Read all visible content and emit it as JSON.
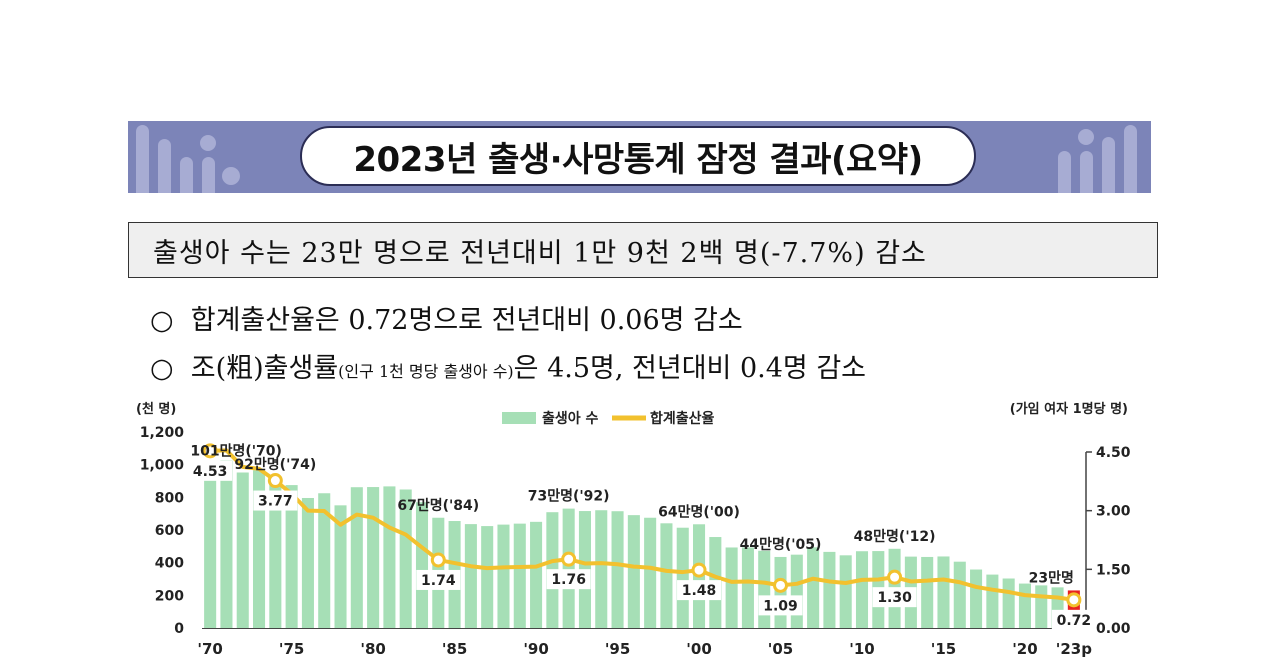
{
  "title": "2023년 출생·사망통계 잠정 결과(요약)",
  "headline": "출생아 수는 23만 명으로 전년대비 1만 9천 2백 명(-7.7%) 감소",
  "bullets": [
    {
      "marker": "○",
      "main": "합계출산율은 0.72명으로 전년대비 0.06명 감소",
      "pre": "",
      "small": "",
      "post": ""
    },
    {
      "marker": "○",
      "main": "",
      "pre": "조(粗)출생률",
      "small": "(인구 1천 명당 출생아 수)",
      "post": "은 4.5명, 전년대비 0.4명 감소"
    }
  ],
  "chart_data": {
    "type": "bar",
    "left_unit": "(천 명)",
    "right_unit": "(가임 여자 1명당 명)",
    "legend": [
      {
        "name": "출생아 수",
        "color": "#a6dfb6"
      },
      {
        "name": "합계출산율",
        "color": "#f2c12e"
      }
    ],
    "ylim_left": [
      0,
      1200
    ],
    "yticks_left": [
      "0",
      "200",
      "400",
      "600",
      "800",
      "1,000",
      "1,200"
    ],
    "ylim_right": [
      0,
      4.5
    ],
    "yticks_right": [
      "0.00",
      "1.50",
      "3.00",
      "4.50"
    ],
    "xticks": [
      "'70",
      "'75",
      "'80",
      "'85",
      "'90",
      "'95",
      "'00",
      "'05",
      "'10",
      "'15",
      "'20",
      "'23p"
    ],
    "years": [
      1970,
      1971,
      1972,
      1973,
      1974,
      1975,
      1976,
      1977,
      1978,
      1979,
      1980,
      1981,
      1982,
      1983,
      1984,
      1985,
      1986,
      1987,
      1988,
      1989,
      1990,
      1991,
      1992,
      1993,
      1994,
      1995,
      1996,
      1997,
      1998,
      1999,
      2000,
      2001,
      2002,
      2003,
      2004,
      2005,
      2006,
      2007,
      2008,
      2009,
      2010,
      2011,
      2012,
      2013,
      2014,
      2015,
      2016,
      2017,
      2018,
      2019,
      2020,
      2021,
      2022,
      2023
    ],
    "births": [
      1007,
      1025,
      952,
      966,
      923,
      875,
      796,
      825,
      751,
      862,
      863,
      867,
      848,
      770,
      675,
      655,
      636,
      624,
      633,
      639,
      650,
      709,
      731,
      716,
      721,
      715,
      691,
      675,
      641,
      614,
      635,
      557,
      493,
      493,
      473,
      435,
      449,
      494,
      466,
      445,
      470,
      471,
      485,
      437,
      435,
      438,
      406,
      358,
      327,
      303,
      272,
      261,
      249,
      230
    ],
    "tfr": [
      4.53,
      4.54,
      4.12,
      4.07,
      3.77,
      3.43,
      3.0,
      2.99,
      2.64,
      2.9,
      2.82,
      2.57,
      2.39,
      2.06,
      1.74,
      1.66,
      1.58,
      1.53,
      1.55,
      1.56,
      1.57,
      1.71,
      1.76,
      1.65,
      1.66,
      1.63,
      1.57,
      1.54,
      1.46,
      1.43,
      1.48,
      1.31,
      1.18,
      1.19,
      1.16,
      1.09,
      1.13,
      1.26,
      1.19,
      1.15,
      1.23,
      1.24,
      1.3,
      1.19,
      1.21,
      1.24,
      1.17,
      1.05,
      0.98,
      0.92,
      0.84,
      0.81,
      0.78,
      0.72
    ],
    "birth_labels": [
      {
        "year": 1970,
        "text": "101만명('70)"
      },
      {
        "year": 1974,
        "text": "92만명('74)"
      },
      {
        "year": 1984,
        "text": "67만명('84)"
      },
      {
        "year": 1992,
        "text": "73만명('92)"
      },
      {
        "year": 2000,
        "text": "64만명('00)"
      },
      {
        "year": 2005,
        "text": "44만명('05)"
      },
      {
        "year": 2012,
        "text": "48만명('12)"
      },
      {
        "year": 2023,
        "text": "23만명"
      }
    ],
    "tfr_labels": [
      {
        "year": 1970,
        "text": "4.53"
      },
      {
        "year": 1974,
        "text": "3.77"
      },
      {
        "year": 1984,
        "text": "1.74"
      },
      {
        "year": 1992,
        "text": "1.76"
      },
      {
        "year": 2000,
        "text": "1.48"
      },
      {
        "year": 2005,
        "text": "1.09"
      },
      {
        "year": 2012,
        "text": "1.30"
      },
      {
        "year": 2023,
        "text": "0.72"
      }
    ],
    "highlight_year": 2023,
    "colors": {
      "bar": "#a6dfb6",
      "highlight_bar": "#e8231f",
      "line": "#f2c12e",
      "marker_fill": "#ffffff"
    }
  }
}
